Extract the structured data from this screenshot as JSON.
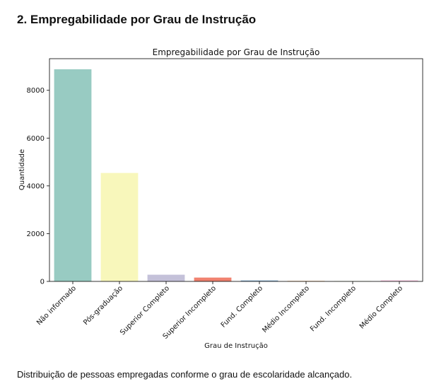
{
  "page": {
    "heading": "2. Empregabilidade por Grau de Instrução",
    "caption": "Distribuição de pessoas empregadas conforme o grau de escolaridade alcançado."
  },
  "chart_data": {
    "type": "bar",
    "title": "Empregabilidade por Grau de Instrução",
    "xlabel": "Grau de Instrução",
    "ylabel": "Quantidade",
    "categories": [
      "Não informado",
      "Pós-graduação",
      "Superior Completo",
      "Superior Incompleto",
      "Fund. Completo",
      "Médio Incompleto",
      "Fund. Incompleto",
      "Médio Completo"
    ],
    "values": [
      8880,
      4540,
      280,
      160,
      40,
      20,
      10,
      50
    ],
    "colors": [
      "#98cbc2",
      "#f8f7bb",
      "#c4c1d9",
      "#f0816f",
      "#80abcb",
      "#f9b56a",
      "#b6d775",
      "#f7cde3"
    ],
    "yticks": [
      0,
      2000,
      4000,
      6000,
      8000
    ],
    "ylim": [
      0,
      9324
    ],
    "grid": false,
    "legend": "none"
  }
}
